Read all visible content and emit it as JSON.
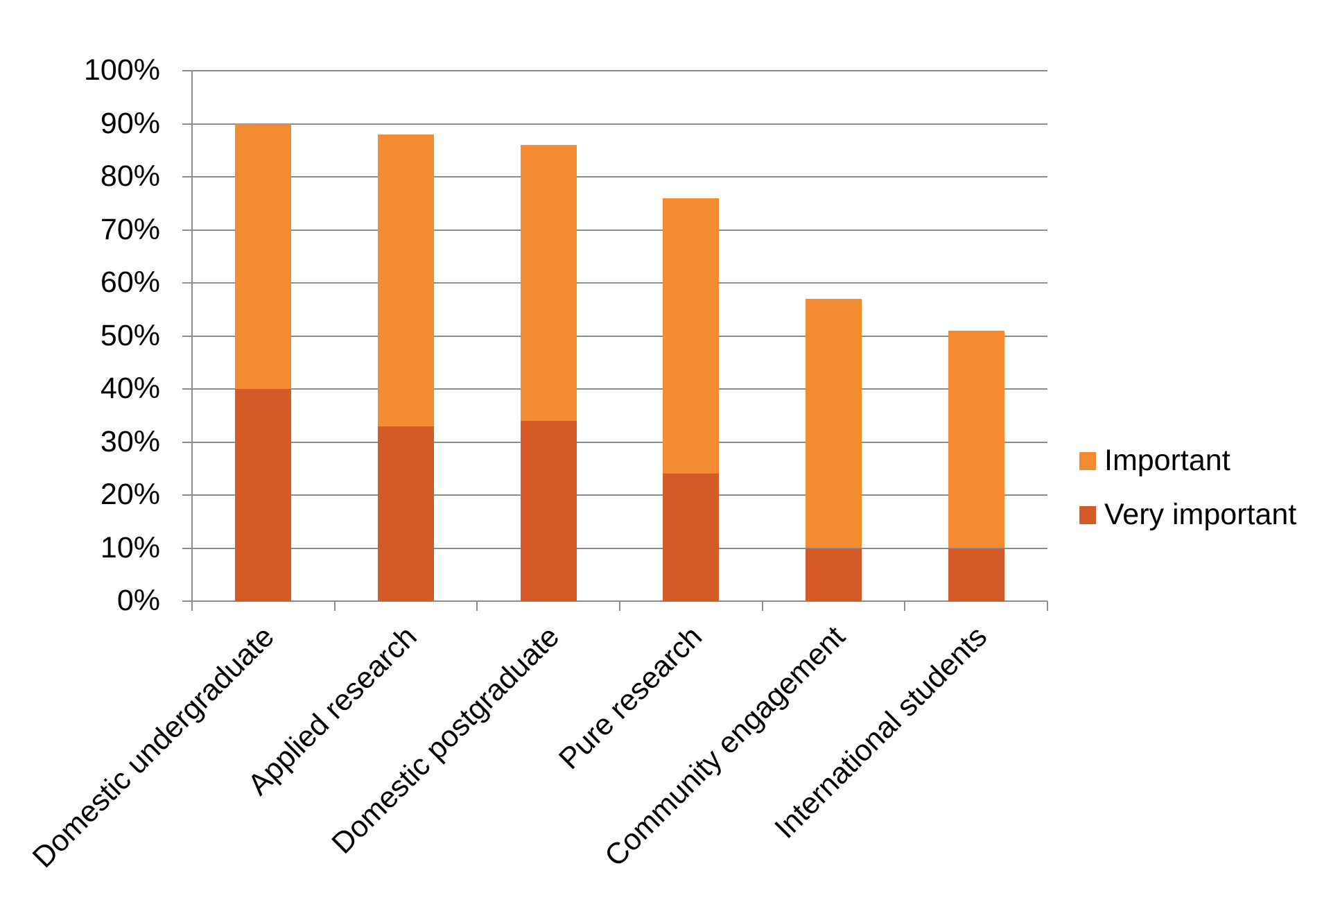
{
  "chart_data": {
    "type": "bar",
    "stacked": true,
    "title": "",
    "xlabel": "",
    "ylabel": "",
    "ylim": [
      0,
      100
    ],
    "y_ticks": [
      "0%",
      "10%",
      "20%",
      "30%",
      "40%",
      "50%",
      "60%",
      "70%",
      "80%",
      "90%",
      "100%"
    ],
    "grid": true,
    "legend_position": "right",
    "categories": [
      "Domestic undergraduate",
      "Applied research",
      "Domestic postgraduate",
      "Pure research",
      "Community engagement",
      "International students"
    ],
    "series": [
      {
        "name": "Very important",
        "color": "#D45A27",
        "values": [
          40,
          33,
          34,
          24,
          10,
          10
        ]
      },
      {
        "name": "Important",
        "color": "#F58B31",
        "values": [
          50,
          55,
          52,
          52,
          47,
          41
        ]
      }
    ],
    "totals": [
      90,
      88,
      86,
      76,
      57,
      51
    ]
  },
  "legend": {
    "items": [
      {
        "label": "Important",
        "color": "#F58B31"
      },
      {
        "label": "Very important",
        "color": "#D45A27"
      }
    ]
  },
  "colors": {
    "gridline": "#8c8c8c",
    "important": "#F58B31",
    "very_important": "#D45A27"
  }
}
